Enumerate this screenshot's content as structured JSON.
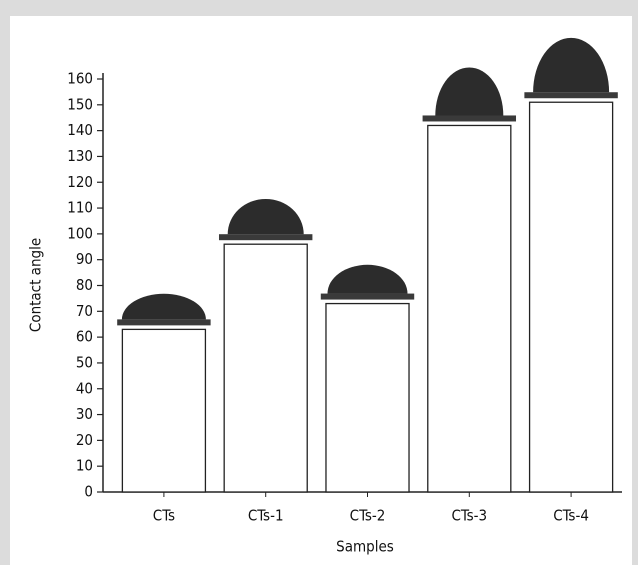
{
  "chart_data": {
    "type": "bar",
    "x_label": "Samples",
    "y_label": "Contact angle",
    "categories": [
      "CTs",
      "CTs-1",
      "CTs-2",
      "CTs-3",
      "CTs-4"
    ],
    "values": [
      63,
      96,
      73,
      142,
      151
    ],
    "color": "#ffffff",
    "ylim": [
      0,
      160
    ],
    "yticks": [
      0,
      10,
      20,
      30,
      40,
      50,
      60,
      70,
      80,
      90,
      100,
      110,
      120,
      130,
      140,
      150,
      160
    ],
    "grid": false
  }
}
